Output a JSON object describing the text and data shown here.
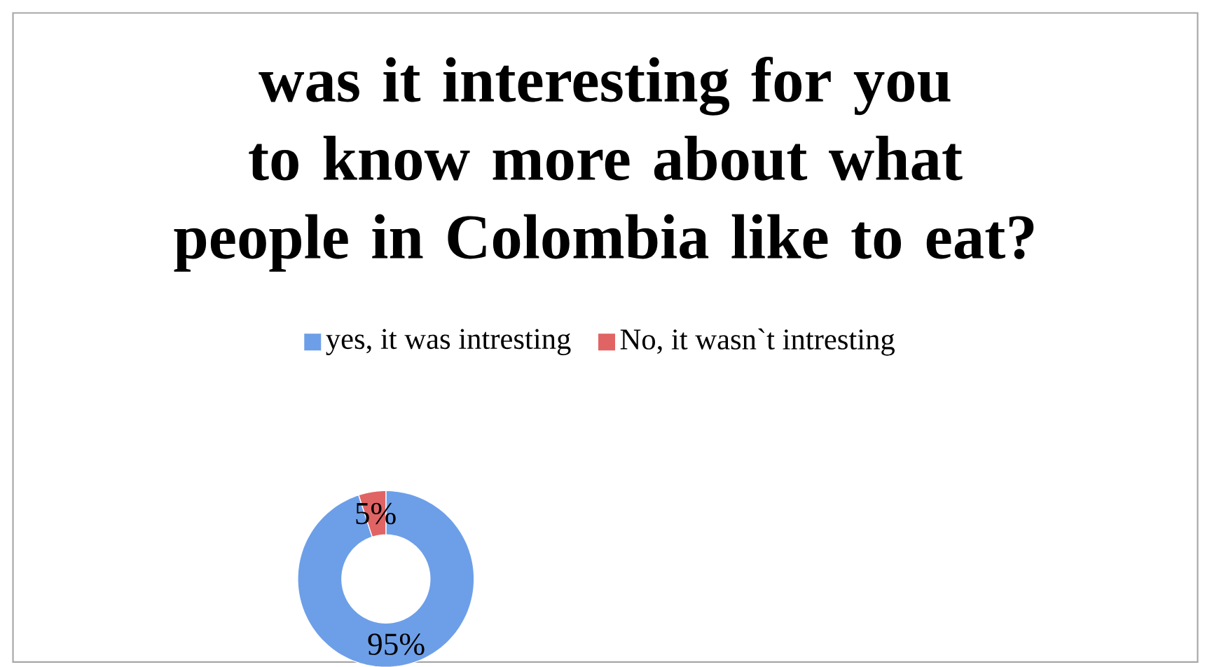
{
  "chart_data": {
    "type": "donut",
    "title": "was it interesting for you to know more about what people in Colombia like to eat?",
    "categories": [
      "yes, it was intresting",
      "No, it wasn`t intresting"
    ],
    "values": [
      95,
      5
    ],
    "colors": [
      "#6d9fe8",
      "#e06464"
    ],
    "value_labels": [
      "95%",
      "5%"
    ],
    "legend": "top"
  }
}
